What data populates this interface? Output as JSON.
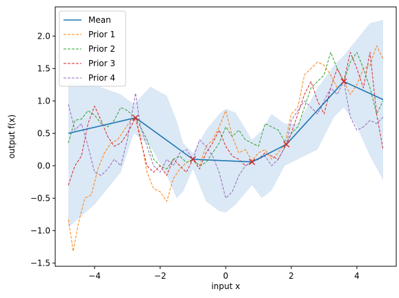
{
  "chart_data": {
    "type": "line",
    "xlabel": "input x",
    "ylabel": "output f(x)",
    "xlim": [
      -5.2,
      5.2
    ],
    "ylim": [
      -1.55,
      2.45
    ],
    "x_ticks": [
      -4,
      -2,
      0,
      2,
      4
    ],
    "x_tick_labels": [
      "−4",
      "−2",
      "0",
      "2",
      "4"
    ],
    "y_ticks": [
      -1.5,
      -1.0,
      -0.5,
      0.0,
      0.5,
      1.0,
      1.5,
      2.0
    ],
    "y_tick_labels": [
      "−1.5",
      "−1.0",
      "−0.5",
      "0.0",
      "0.5",
      "1.0",
      "1.5",
      "2.0"
    ],
    "grid": false,
    "legend_position": "top-left",
    "band": {
      "color": "#dbe8f5",
      "x": [
        -4.8,
        -4.0,
        -3.2,
        -2.8,
        -2.3,
        -1.8,
        -1.5,
        -1.3,
        -1.0,
        -0.6,
        -0.2,
        0.0,
        0.3,
        0.8,
        1.1,
        1.4,
        1.8,
        2.2,
        2.8,
        3.3,
        3.6,
        4.0,
        4.4,
        4.8
      ],
      "upper": [
        1.3,
        1.25,
        1.1,
        0.95,
        1.22,
        1.08,
        0.7,
        0.35,
        0.2,
        0.55,
        0.8,
        0.88,
        0.82,
        0.4,
        0.55,
        0.8,
        0.65,
        0.65,
        1.2,
        1.55,
        1.7,
        1.95,
        2.2,
        2.25
      ],
      "lower": [
        -0.95,
        -0.6,
        -0.1,
        0.5,
        0.3,
        -0.15,
        -0.5,
        -0.4,
        -0.05,
        -0.55,
        -0.7,
        -0.72,
        -0.6,
        -0.3,
        -0.5,
        -0.38,
        0.0,
        0.1,
        0.25,
        0.75,
        0.9,
        0.6,
        0.15,
        -0.22
      ]
    },
    "observations": {
      "color": "#d62728",
      "x": [
        -2.75,
        -1.0,
        0.8,
        1.85,
        3.6
      ],
      "y": [
        0.74,
        0.1,
        0.06,
        0.33,
        1.3
      ]
    },
    "series": [
      {
        "name": "Mean",
        "color": "#1f77b4",
        "style": "solid",
        "x": [
          -4.8,
          -2.75,
          -1.0,
          0.8,
          1.85,
          3.6,
          4.8
        ],
        "y": [
          0.5,
          0.74,
          0.1,
          0.06,
          0.33,
          1.3,
          1.02
        ]
      },
      {
        "name": "Prior 1",
        "color": "#ff7f0e",
        "style": "dashed",
        "x": [
          -4.8,
          -4.65,
          -4.5,
          -4.3,
          -4.1,
          -3.9,
          -3.7,
          -3.5,
          -3.3,
          -3.1,
          -2.9,
          -2.75,
          -2.6,
          -2.4,
          -2.2,
          -2.0,
          -1.8,
          -1.6,
          -1.4,
          -1.2,
          -1.0,
          -0.8,
          -0.6,
          -0.4,
          -0.2,
          0.0,
          0.2,
          0.4,
          0.6,
          0.8,
          1.0,
          1.2,
          1.4,
          1.6,
          1.8,
          2.0,
          2.2,
          2.4,
          2.6,
          2.8,
          3.0,
          3.2,
          3.4,
          3.6,
          3.8,
          4.0,
          4.2,
          4.4,
          4.6,
          4.8
        ],
        "y": [
          -0.83,
          -1.32,
          -0.9,
          -0.5,
          -0.45,
          -0.05,
          0.2,
          0.35,
          0.4,
          0.55,
          0.7,
          0.74,
          0.45,
          -0.1,
          -0.35,
          -0.4,
          -0.55,
          -0.2,
          -0.05,
          0.05,
          0.1,
          0.0,
          0.3,
          0.4,
          0.6,
          0.85,
          0.45,
          0.2,
          0.25,
          0.08,
          0.2,
          0.25,
          0.1,
          0.2,
          0.33,
          0.8,
          0.9,
          1.4,
          1.5,
          1.6,
          1.55,
          1.4,
          1.2,
          1.3,
          1.1,
          1.25,
          1.5,
          1.55,
          1.85,
          1.65
        ]
      },
      {
        "name": "Prior 2",
        "color": "#2ca02c",
        "style": "dashed",
        "x": [
          -4.8,
          -4.6,
          -4.4,
          -4.2,
          -4.0,
          -3.8,
          -3.6,
          -3.4,
          -3.2,
          -3.0,
          -2.75,
          -2.6,
          -2.4,
          -2.2,
          -2.0,
          -1.8,
          -1.6,
          -1.4,
          -1.2,
          -1.0,
          -0.8,
          -0.6,
          -0.4,
          -0.2,
          0.0,
          0.2,
          0.4,
          0.6,
          0.8,
          1.0,
          1.2,
          1.4,
          1.6,
          1.85,
          2.0,
          2.2,
          2.4,
          2.6,
          2.8,
          3.0,
          3.2,
          3.4,
          3.6,
          3.8,
          4.0,
          4.2,
          4.4,
          4.6,
          4.8
        ],
        "y": [
          0.35,
          0.7,
          0.72,
          0.85,
          0.78,
          0.65,
          0.6,
          0.7,
          0.9,
          0.85,
          0.74,
          0.6,
          0.4,
          0.1,
          0.0,
          -0.05,
          0.1,
          0.15,
          0.05,
          0.1,
          0.0,
          0.05,
          0.2,
          0.35,
          0.6,
          0.45,
          0.55,
          0.4,
          0.35,
          0.3,
          0.65,
          0.6,
          0.55,
          0.33,
          0.5,
          0.6,
          0.9,
          1.2,
          1.3,
          1.4,
          1.75,
          1.5,
          1.3,
          1.6,
          1.75,
          1.5,
          1.2,
          0.8,
          1.0
        ]
      },
      {
        "name": "Prior 3",
        "color": "#d62728",
        "style": "dashed",
        "x": [
          -4.8,
          -4.6,
          -4.4,
          -4.2,
          -4.0,
          -3.8,
          -3.6,
          -3.4,
          -3.2,
          -3.0,
          -2.75,
          -2.6,
          -2.4,
          -2.2,
          -2.0,
          -1.8,
          -1.6,
          -1.4,
          -1.2,
          -1.0,
          -0.8,
          -0.6,
          -0.4,
          -0.2,
          0.0,
          0.2,
          0.4,
          0.6,
          0.8,
          1.0,
          1.2,
          1.4,
          1.6,
          1.85,
          2.0,
          2.2,
          2.4,
          2.6,
          2.8,
          3.0,
          3.2,
          3.4,
          3.6,
          3.8,
          4.0,
          4.2,
          4.4,
          4.6,
          4.8
        ],
        "y": [
          -0.3,
          0.0,
          0.15,
          0.65,
          0.92,
          0.7,
          0.45,
          0.3,
          0.35,
          0.5,
          0.74,
          0.4,
          0.0,
          -0.1,
          0.0,
          -0.15,
          0.1,
          0.0,
          -0.1,
          0.1,
          -0.05,
          0.2,
          0.35,
          0.55,
          0.3,
          0.15,
          0.1,
          0.0,
          0.06,
          0.1,
          0.2,
          0.15,
          0.1,
          0.33,
          0.5,
          0.8,
          1.1,
          1.3,
          1.0,
          0.8,
          1.2,
          1.5,
          1.3,
          1.75,
          1.5,
          1.2,
          1.75,
          0.8,
          0.25
        ]
      },
      {
        "name": "Prior 4",
        "color": "#9467bd",
        "style": "dashed",
        "x": [
          -4.8,
          -4.6,
          -4.4,
          -4.2,
          -4.0,
          -3.8,
          -3.6,
          -3.4,
          -3.2,
          -3.0,
          -2.75,
          -2.6,
          -2.4,
          -2.2,
          -2.0,
          -1.8,
          -1.6,
          -1.4,
          -1.2,
          -1.0,
          -0.8,
          -0.6,
          -0.4,
          -0.2,
          0.0,
          0.2,
          0.4,
          0.6,
          0.8,
          1.0,
          1.2,
          1.4,
          1.6,
          1.85,
          2.0,
          2.2,
          2.4,
          2.6,
          2.8,
          3.0,
          3.2,
          3.4,
          3.6,
          3.8,
          4.0,
          4.2,
          4.4,
          4.6,
          4.8
        ],
        "y": [
          0.95,
          0.55,
          0.65,
          0.3,
          -0.1,
          -0.15,
          -0.05,
          0.1,
          0.0,
          0.4,
          1.12,
          0.6,
          0.3,
          0.0,
          -0.1,
          0.1,
          0.0,
          0.2,
          0.25,
          0.1,
          0.4,
          0.3,
          0.15,
          -0.1,
          -0.5,
          -0.4,
          -0.15,
          0.0,
          0.06,
          0.1,
          0.15,
          0.0,
          0.1,
          0.33,
          0.7,
          0.85,
          1.0,
          0.9,
          0.8,
          1.0,
          1.2,
          1.1,
          1.3,
          0.75,
          0.55,
          0.6,
          0.7,
          0.65,
          0.75
        ]
      }
    ]
  }
}
